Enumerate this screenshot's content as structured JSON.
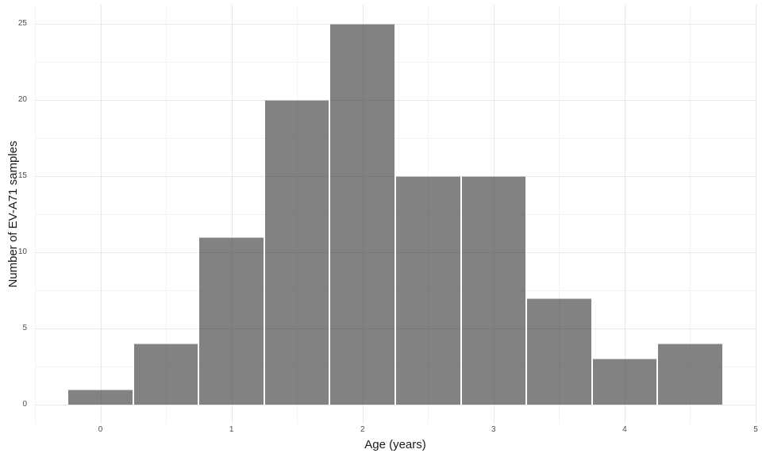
{
  "chart_data": {
    "type": "bar",
    "subtype": "histogram",
    "xlabel": "Age (years)",
    "ylabel": "Number of EV-A71 samples",
    "bin_width": 0.5,
    "bin_centers": [
      0,
      0.5,
      1,
      1.5,
      2,
      2.5,
      3,
      3.5,
      4,
      4.5
    ],
    "values": [
      1,
      4,
      11,
      20,
      25,
      15,
      15,
      7,
      3,
      4
    ],
    "x_ticks": [
      0,
      1,
      2,
      3,
      4,
      5
    ],
    "y_ticks": [
      0,
      5,
      10,
      15,
      20,
      25
    ],
    "x_minor_gridlines": [
      -0.5,
      0.5,
      1.5,
      2.5,
      3.5,
      4.5
    ],
    "y_minor_gridlines": [
      2.5,
      7.5,
      12.5,
      17.5,
      22.5
    ],
    "xlim": [
      -0.5,
      5.0
    ],
    "ylim": [
      -1.25,
      26.25
    ],
    "grid": "on",
    "legend": "none",
    "colors": {
      "background": "#FFFFFF",
      "bar_fill_rgba": "rgba(50,50,50,0.61)",
      "bar_separator": "#FFFFFF",
      "major_grid": "#E8E8E8",
      "minor_grid": "#F2F2F2",
      "tick_label": "#4D4D4D",
      "axis_title": "#1A1A1A"
    }
  }
}
